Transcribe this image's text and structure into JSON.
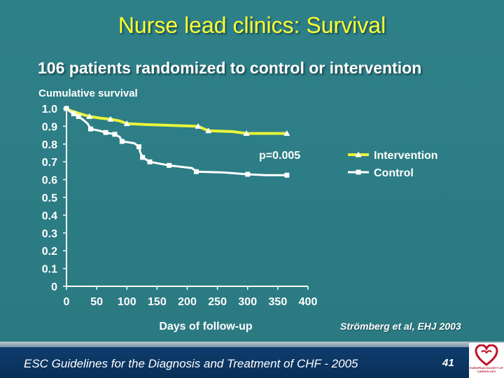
{
  "slide": {
    "title": "Nurse lead clinics: Survival",
    "subtitle": "106 patients randomized to control or intervention",
    "citation": "Strömberg et al, EHJ 2003",
    "pvalue": "p=0.005"
  },
  "footer": {
    "text": "ESC Guidelines for the Diagnosis and Treatment of CHF - 2005",
    "page": "41",
    "logo_text": "EUROPEAN SOCIETY OF CARDIOLOGY"
  },
  "colors": {
    "background": "#2e8088",
    "title": "#ffff33",
    "intervention": "#e8f53a",
    "control": "#ffffff",
    "footer": "#0e3d6e"
  },
  "chart_data": {
    "type": "line",
    "xlabel": "Days of follow-up",
    "ylabel": "Cumulative survival",
    "xlim": [
      0,
      400
    ],
    "ylim": [
      0,
      1.0
    ],
    "xticks": [
      "0",
      "50",
      "100",
      "150",
      "200",
      "250",
      "300",
      "350",
      "400"
    ],
    "yticks": [
      "0",
      "0.1",
      "0.2",
      "0.3",
      "0.4",
      "0.5",
      "0.6",
      "0.7",
      "0.8",
      "0.9",
      "1.0"
    ],
    "legend_position": "right",
    "series": [
      {
        "name": "Intervention",
        "marker": "triangle",
        "points": [
          [
            0,
            1.0
          ],
          [
            5,
            0.99
          ],
          [
            18,
            0.975
          ],
          [
            38,
            0.955
          ],
          [
            58,
            0.945
          ],
          [
            73,
            0.94
          ],
          [
            88,
            0.93
          ],
          [
            100,
            0.915
          ],
          [
            130,
            0.91
          ],
          [
            218,
            0.9
          ],
          [
            235,
            0.875
          ],
          [
            275,
            0.87
          ],
          [
            298,
            0.86
          ],
          [
            320,
            0.86
          ],
          [
            365,
            0.86
          ]
        ],
        "markers": [
          [
            0,
            1.0
          ],
          [
            38,
            0.955
          ],
          [
            73,
            0.94
          ],
          [
            100,
            0.915
          ],
          [
            218,
            0.9
          ],
          [
            235,
            0.875
          ],
          [
            298,
            0.86
          ],
          [
            365,
            0.86
          ]
        ]
      },
      {
        "name": "Control",
        "marker": "square",
        "points": [
          [
            0,
            1.0
          ],
          [
            5,
            0.985
          ],
          [
            12,
            0.97
          ],
          [
            20,
            0.955
          ],
          [
            28,
            0.935
          ],
          [
            35,
            0.915
          ],
          [
            40,
            0.885
          ],
          [
            55,
            0.875
          ],
          [
            65,
            0.865
          ],
          [
            80,
            0.855
          ],
          [
            88,
            0.84
          ],
          [
            92,
            0.815
          ],
          [
            112,
            0.805
          ],
          [
            120,
            0.785
          ],
          [
            122,
            0.755
          ],
          [
            126,
            0.725
          ],
          [
            138,
            0.7
          ],
          [
            170,
            0.68
          ],
          [
            208,
            0.665
          ],
          [
            215,
            0.645
          ],
          [
            260,
            0.64
          ],
          [
            300,
            0.63
          ],
          [
            330,
            0.625
          ],
          [
            365,
            0.625
          ]
        ],
        "markers": [
          [
            0,
            1.0
          ],
          [
            12,
            0.97
          ],
          [
            20,
            0.955
          ],
          [
            40,
            0.885
          ],
          [
            65,
            0.865
          ],
          [
            80,
            0.855
          ],
          [
            92,
            0.815
          ],
          [
            120,
            0.785
          ],
          [
            126,
            0.725
          ],
          [
            138,
            0.7
          ],
          [
            170,
            0.68
          ],
          [
            215,
            0.645
          ],
          [
            300,
            0.63
          ],
          [
            365,
            0.625
          ]
        ]
      }
    ]
  }
}
